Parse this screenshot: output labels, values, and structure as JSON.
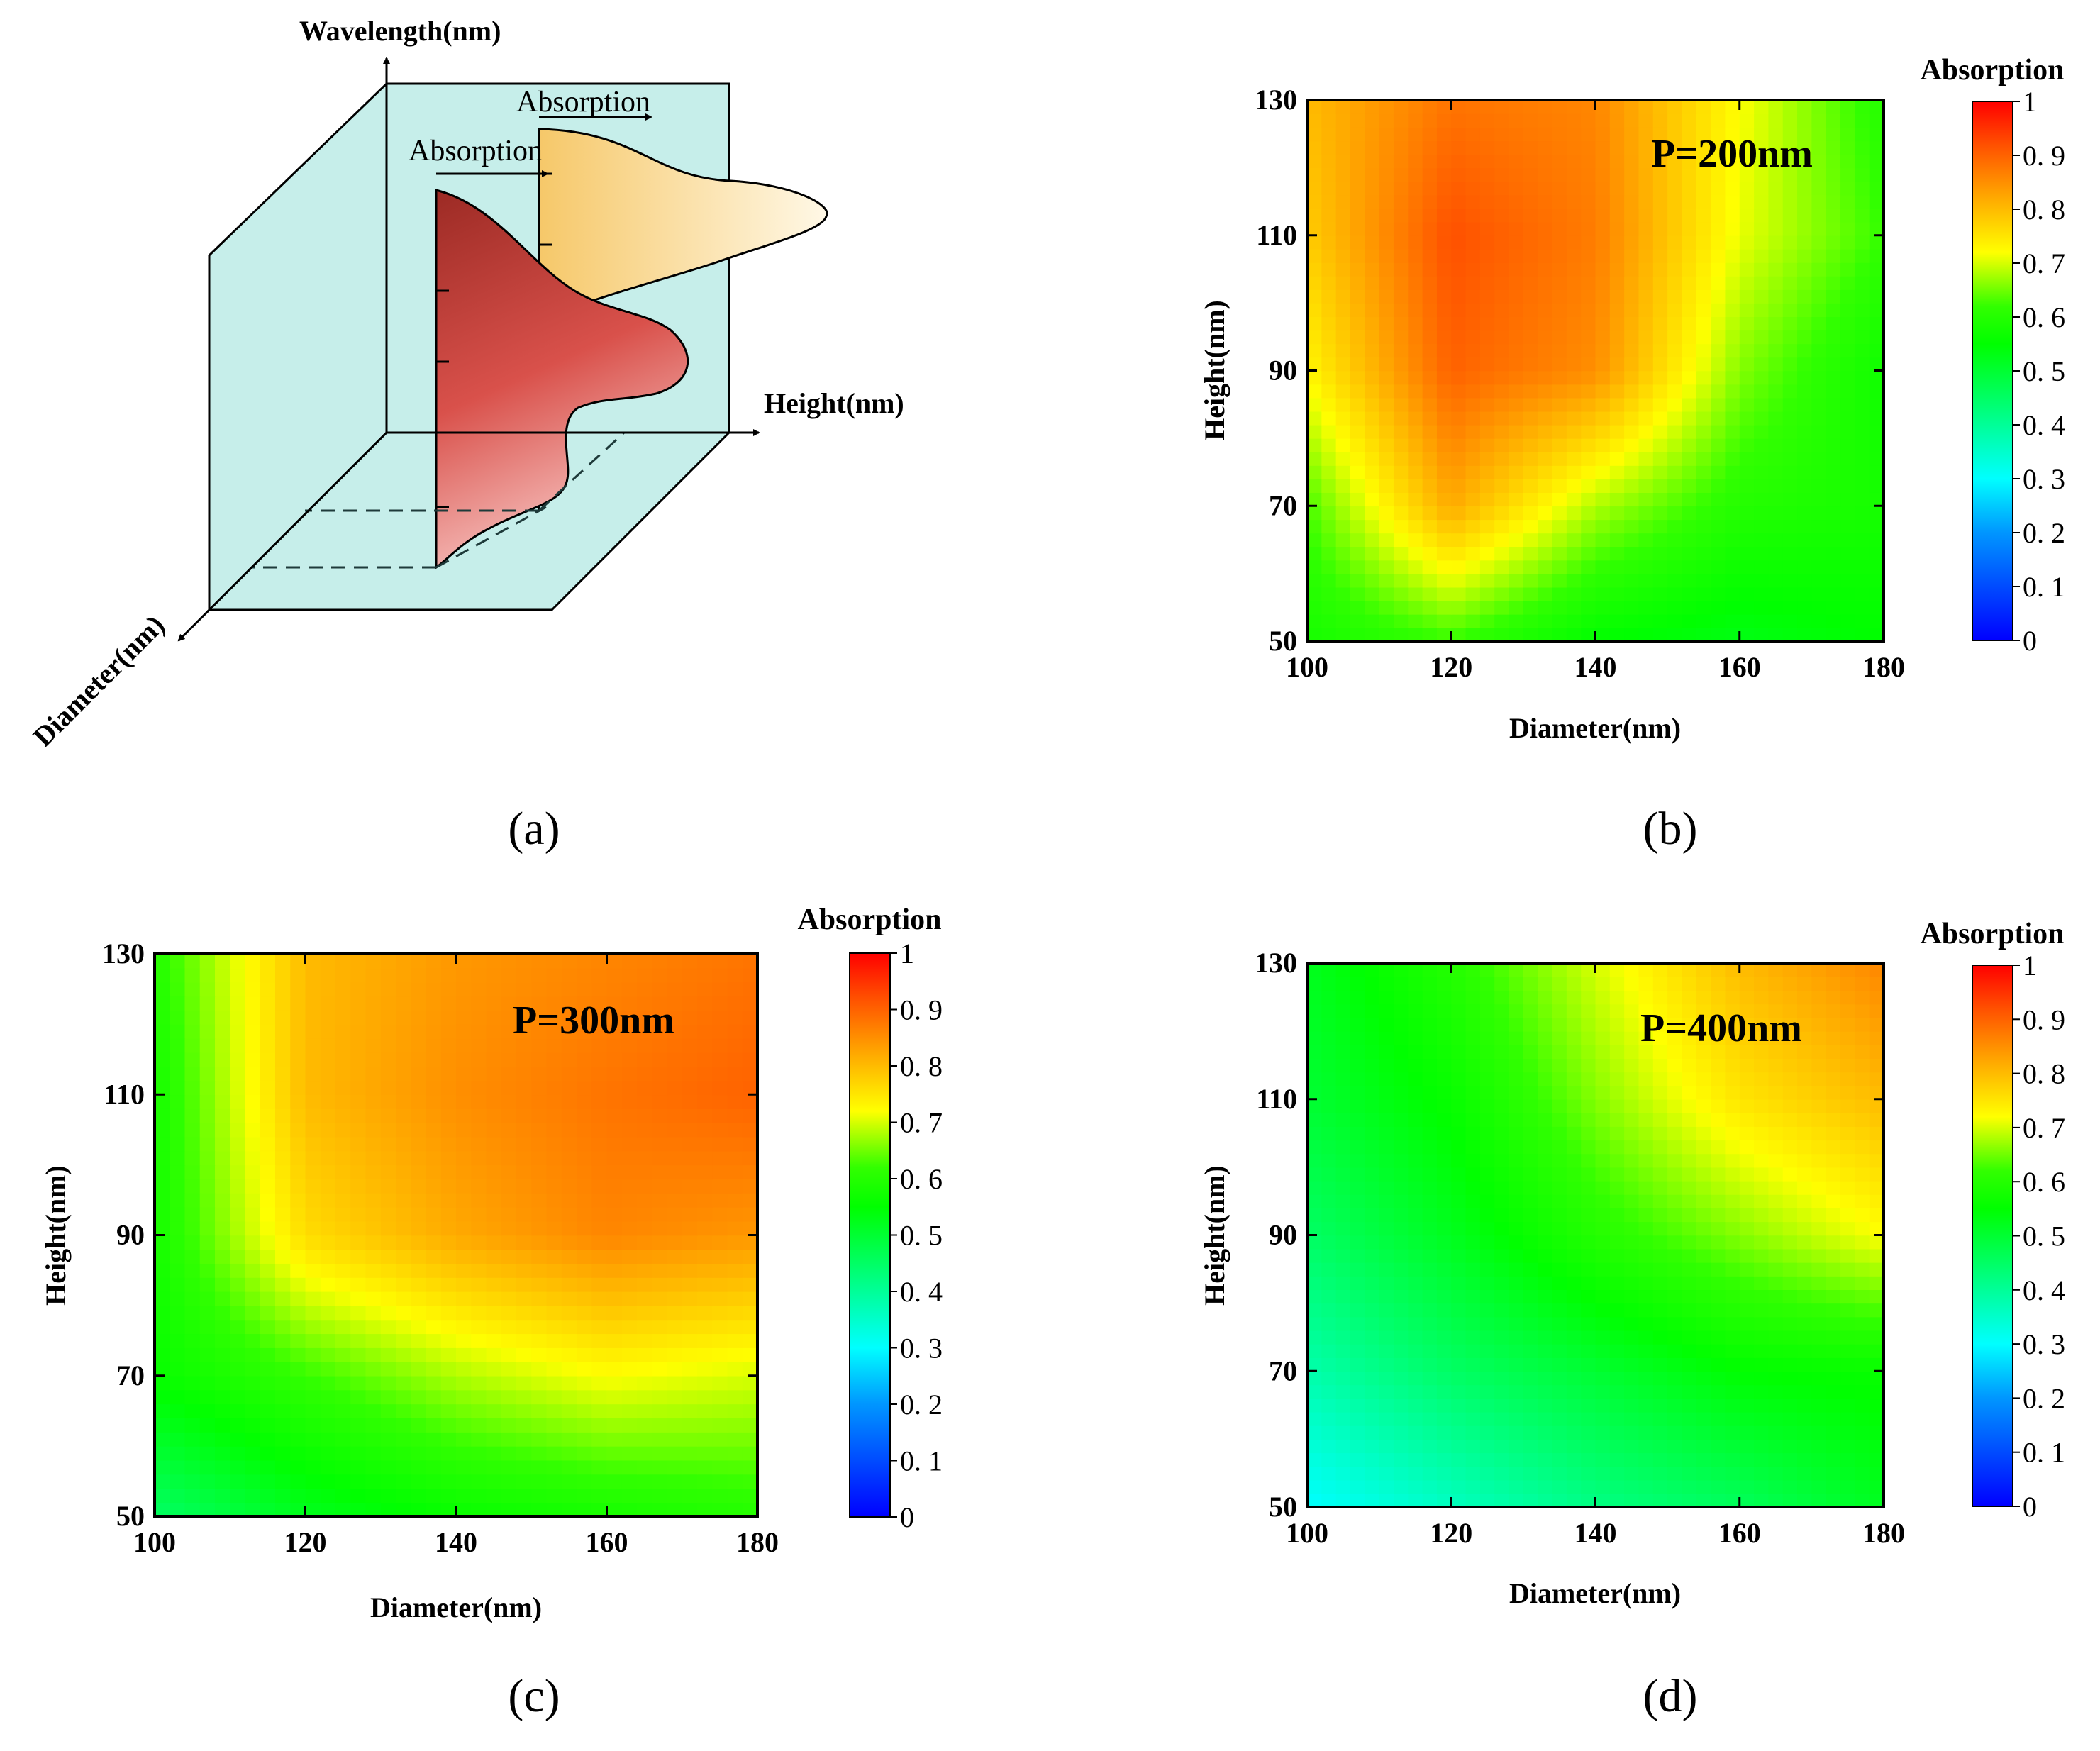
{
  "figure": {
    "panel_a": {
      "label": "(a)",
      "axis_wavelength": "Wavelength(nm)",
      "axis_height": "Height(nm)",
      "axis_diameter": "Diameter(nm)",
      "absorption_back": "Absorption",
      "absorption_front": "Absorption"
    },
    "colorbar": {
      "title": "Absorption",
      "ticks": [
        "0",
        "0. 1",
        "0. 2",
        "0. 3",
        "0. 4",
        "0. 5",
        "0. 6",
        "0. 7",
        "0. 8",
        "0. 9",
        "1"
      ]
    }
  },
  "chart_data": [
    {
      "type": "heatmap",
      "panel": "(b)",
      "annotation": "P=200nm",
      "xlabel": "Diameter(nm)",
      "ylabel": "Height(nm)",
      "xlim": [
        100,
        180
      ],
      "ylim": [
        50,
        130
      ],
      "x": [
        100,
        120,
        140,
        160,
        180
      ],
      "y": [
        50,
        70,
        90,
        110,
        130
      ],
      "x_tick_labels": [
        "100",
        "120",
        "140",
        "160",
        "180"
      ],
      "y_tick_labels": [
        "50",
        "70",
        "90",
        "110",
        "130"
      ],
      "colorbar_title": "Absorption",
      "colorbar_range": [
        0,
        1
      ],
      "z": [
        [
          0.58,
          0.62,
          0.55,
          0.53,
          0.55
        ],
        [
          0.63,
          0.82,
          0.68,
          0.6,
          0.58
        ],
        [
          0.73,
          0.9,
          0.85,
          0.66,
          0.57
        ],
        [
          0.78,
          0.92,
          0.87,
          0.71,
          0.62
        ],
        [
          0.8,
          0.88,
          0.86,
          0.72,
          0.6
        ]
      ]
    },
    {
      "type": "heatmap",
      "panel": "(c)",
      "annotation": "P=300nm",
      "xlabel": "Diameter(nm)",
      "ylabel": "Height(nm)",
      "xlim": [
        100,
        180
      ],
      "ylim": [
        50,
        130
      ],
      "x": [
        100,
        120,
        140,
        160,
        180
      ],
      "y": [
        50,
        70,
        90,
        110,
        130
      ],
      "x_tick_labels": [
        "100",
        "120",
        "140",
        "160",
        "180"
      ],
      "y_tick_labels": [
        "50",
        "70",
        "90",
        "110",
        "130"
      ],
      "colorbar_title": "Absorption",
      "colorbar_range": [
        0,
        1
      ],
      "z": [
        [
          0.45,
          0.52,
          0.56,
          0.58,
          0.6
        ],
        [
          0.56,
          0.62,
          0.68,
          0.72,
          0.7
        ],
        [
          0.58,
          0.76,
          0.82,
          0.86,
          0.84
        ],
        [
          0.58,
          0.8,
          0.85,
          0.88,
          0.9
        ],
        [
          0.6,
          0.8,
          0.84,
          0.86,
          0.88
        ]
      ]
    },
    {
      "type": "heatmap",
      "panel": "(d)",
      "annotation": "P=400nm",
      "xlabel": "Diameter(nm)",
      "ylabel": "Height(nm)",
      "xlim": [
        100,
        180
      ],
      "ylim": [
        50,
        130
      ],
      "x": [
        100,
        120,
        140,
        160,
        180
      ],
      "y": [
        50,
        70,
        90,
        110,
        130
      ],
      "x_tick_labels": [
        "100",
        "120",
        "140",
        "160",
        "180"
      ],
      "y_tick_labels": [
        "50",
        "70",
        "90",
        "110",
        "130"
      ],
      "colorbar_title": "Absorption",
      "colorbar_range": [
        0,
        1
      ],
      "z": [
        [
          0.3,
          0.36,
          0.42,
          0.46,
          0.52
        ],
        [
          0.38,
          0.45,
          0.5,
          0.55,
          0.56
        ],
        [
          0.45,
          0.52,
          0.6,
          0.66,
          0.72
        ],
        [
          0.5,
          0.56,
          0.66,
          0.75,
          0.8
        ],
        [
          0.52,
          0.6,
          0.7,
          0.8,
          0.86
        ]
      ]
    }
  ]
}
